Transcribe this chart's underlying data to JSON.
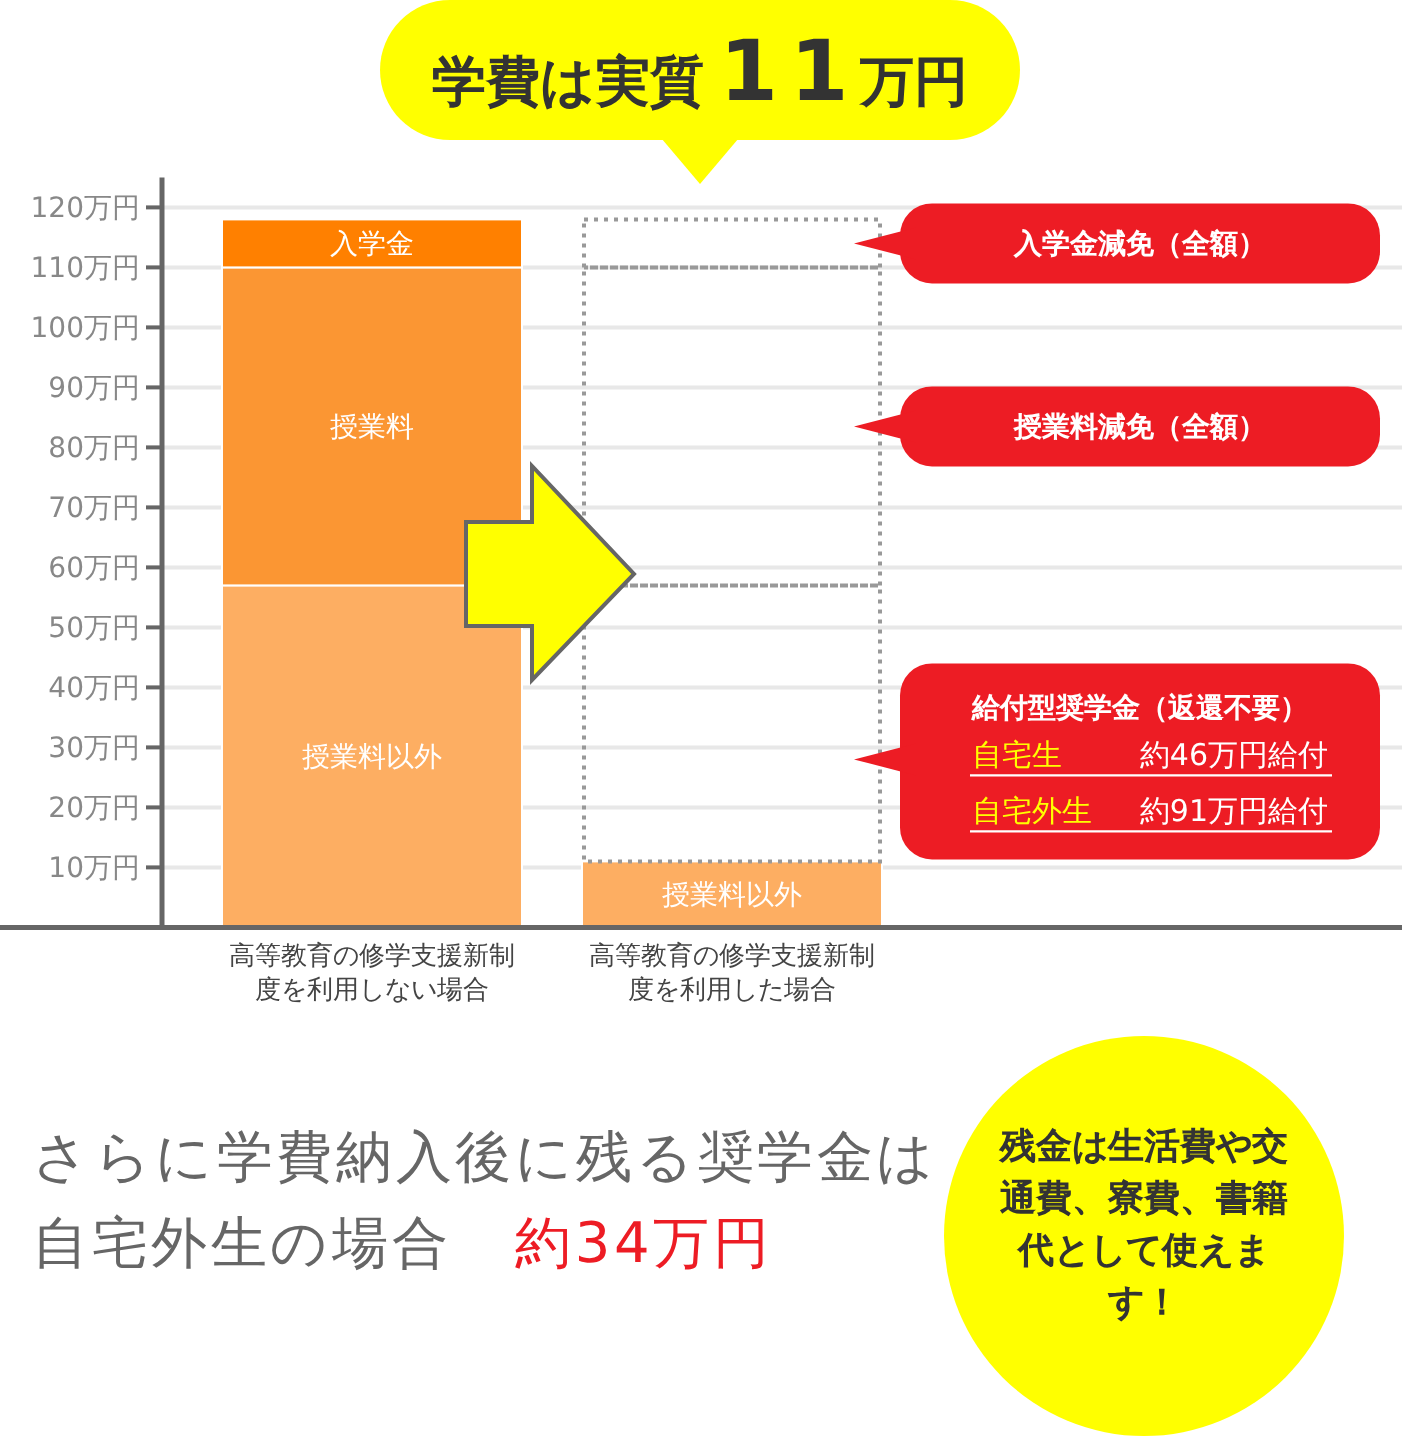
{
  "chart_data": {
    "type": "bar",
    "title": "学費は実質11万円",
    "categories": [
      "高等教育の修学支援新制度を利用しない場合",
      "高等教育の修学支援新制度を利用した場合"
    ],
    "stacked": true,
    "series": [
      {
        "name": "授業料以外",
        "color": "#fdae62",
        "values": [
          57,
          11
        ]
      },
      {
        "name": "授業料",
        "color": "#fb9633",
        "values": [
          53,
          null
        ]
      },
      {
        "name": "入学金",
        "color": "#ff8000",
        "values": [
          8,
          null
        ]
      },
      {
        "color": "#999999",
        "line_style": "dotted",
        "values": [
          null,
          46
        ]
      },
      {
        "color": "#999999",
        "line_style": "dotted",
        "values": [
          null,
          53
        ]
      },
      {
        "color": "#999999",
        "line_style": "dotted",
        "values": [
          null,
          8
        ]
      }
    ],
    "ylim": [
      0,
      125
    ],
    "yticks": [
      {
        "value": 10,
        "label": "10万円"
      },
      {
        "value": 20,
        "label": "20万円"
      },
      {
        "value": 30,
        "label": "30万円"
      },
      {
        "value": 40,
        "label": "40万円"
      },
      {
        "value": 50,
        "label": "50万円"
      },
      {
        "value": 60,
        "label": "60万円"
      },
      {
        "value": 70,
        "label": "70万円"
      },
      {
        "value": 80,
        "label": "80万円"
      },
      {
        "value": 90,
        "label": "90万円"
      },
      {
        "value": 100,
        "label": "100万円"
      },
      {
        "value": 110,
        "label": "110万円"
      },
      {
        "value": 120,
        "label": "120万円"
      }
    ],
    "grid": "y",
    "annotations": [
      "入学金減免（全額）",
      "授業料減免（全額）",
      "給付型奨学金（返還不要）",
      "自宅生",
      "約46万円給付",
      "自宅外生",
      "約91万円給付",
      "さらに学費納入後に残る奨学金は",
      "自宅外生の場合",
      "約34万円",
      "残金は生活費や交通費、寮費、書籍代として使えます！"
    ]
  }
}
